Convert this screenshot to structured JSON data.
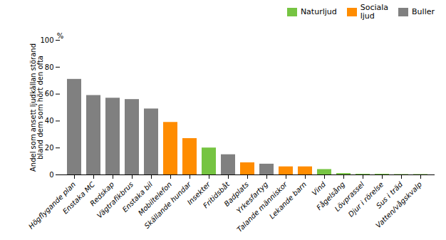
{
  "chart_data": {
    "type": "bar",
    "ylabel": "Andel som ansett ljudkällan störand\nbland dem som hört den ofta",
    "annotations": [
      "%"
    ],
    "categories": [
      "Högflygande plan",
      "Enstaka MC",
      "Redskap",
      "Vägtrafikbrus",
      "Enstaka bil",
      "Mobiltelefon",
      "Skällande hundar",
      "Insekter",
      "Fritidsbåt",
      "Badplats",
      "Yrkesfartyg",
      "Talande människor",
      "Lekande barn",
      "Vind",
      "Fågelsång",
      "Lövprassel",
      "Djur i rörelse",
      "Sus i träd",
      "Vatten/vågskvalp"
    ],
    "series": [
      {
        "name": "Naturljud",
        "color": "#76c442",
        "values": [
          null,
          null,
          null,
          null,
          null,
          null,
          null,
          20,
          null,
          null,
          null,
          null,
          null,
          4,
          1,
          0.5,
          0.5,
          0.3,
          0.3
        ]
      },
      {
        "name": "Sociala\nljud",
        "color": "#ff8c00",
        "values": [
          null,
          null,
          null,
          null,
          null,
          39,
          27,
          null,
          null,
          9,
          null,
          6,
          6,
          null,
          null,
          null,
          null,
          null,
          null
        ]
      },
      {
        "name": "Buller",
        "color": "#808080",
        "values": [
          71,
          59,
          57,
          56,
          49,
          null,
          null,
          null,
          15,
          null,
          8,
          null,
          null,
          null,
          null,
          null,
          null,
          null,
          null
        ]
      }
    ],
    "ylim": [
      0,
      100
    ],
    "yticks": [
      0,
      20,
      40,
      60,
      80,
      100
    ],
    "legend": "upper right",
    "grid": false
  }
}
